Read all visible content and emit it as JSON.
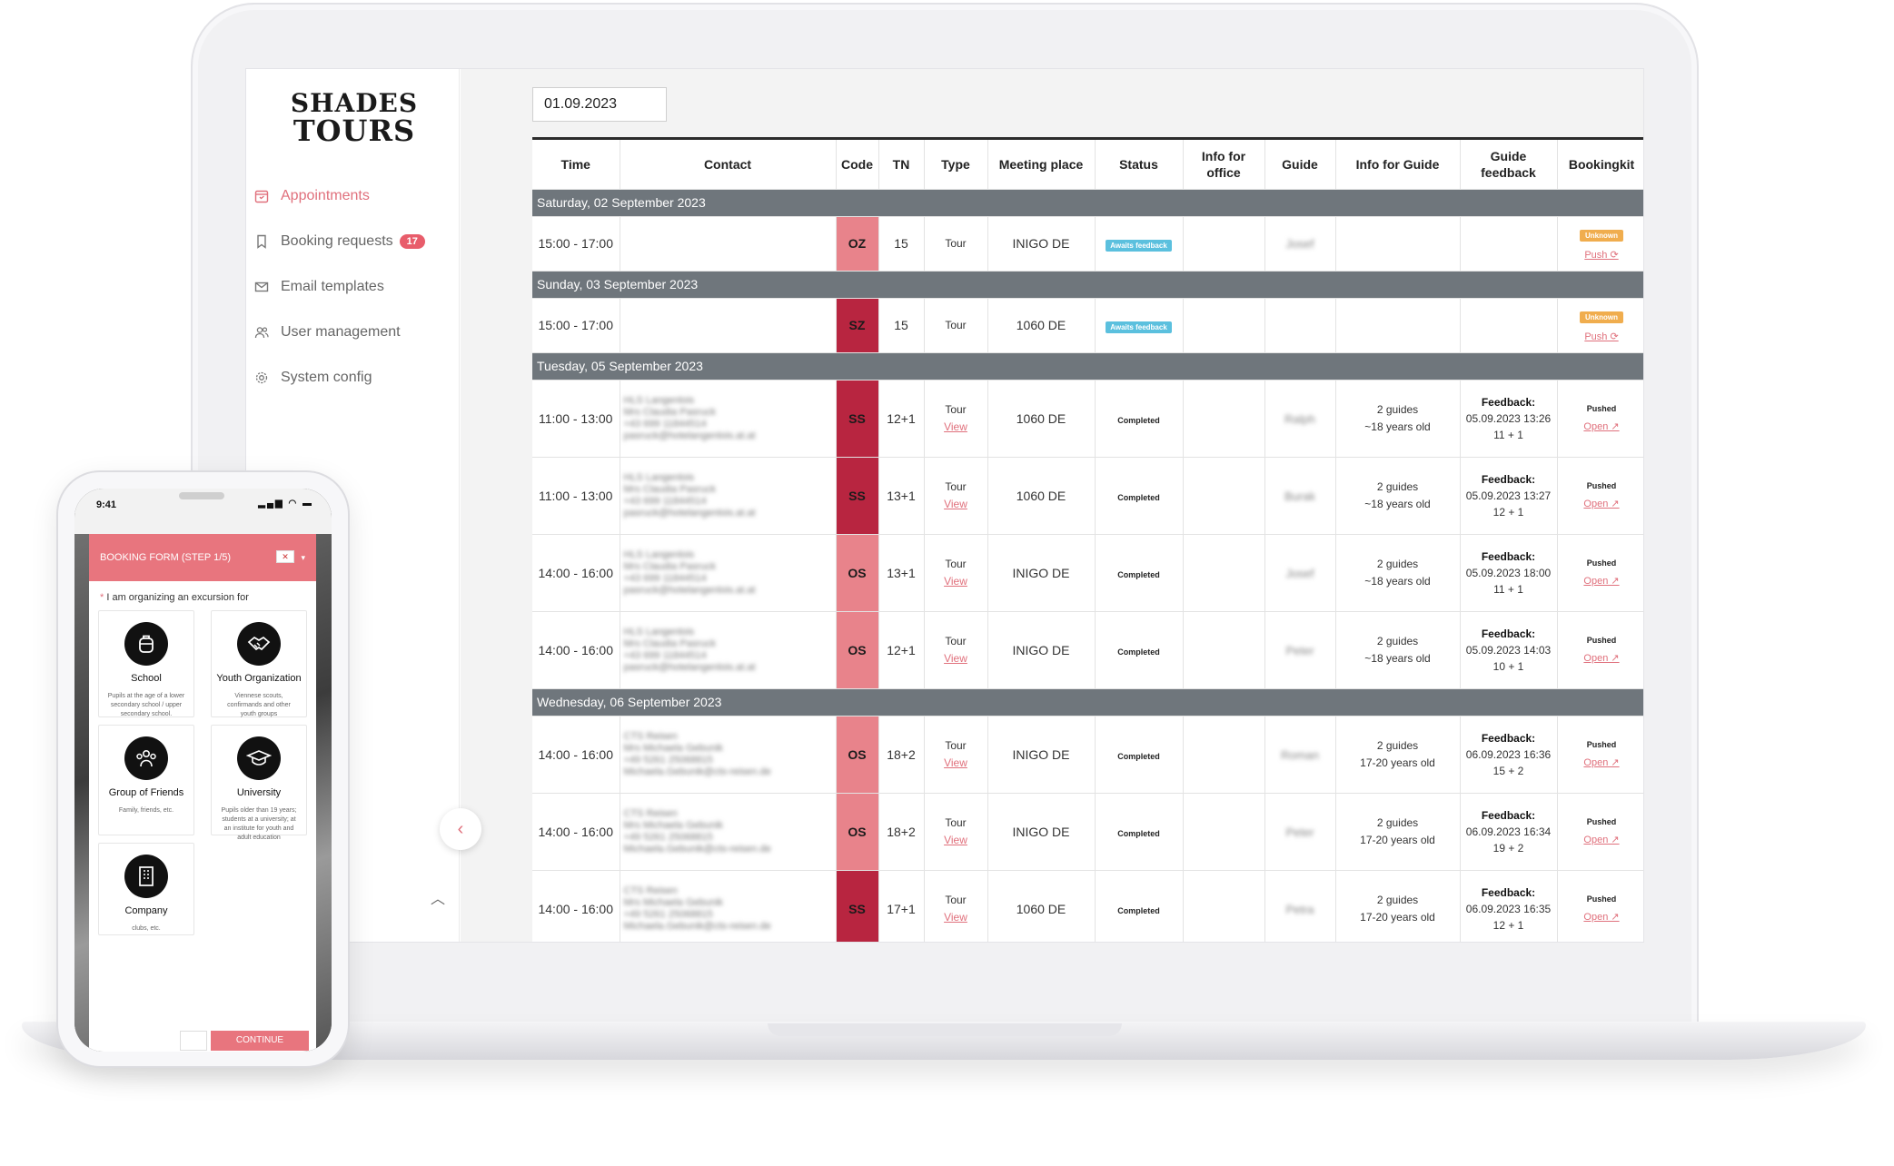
{
  "brand": {
    "line1": "SHADES",
    "line2": "TOURS"
  },
  "sidebar": {
    "items": [
      {
        "label": "Appointments",
        "icon": "calendar-icon",
        "active": true
      },
      {
        "label": "Booking requests",
        "icon": "bookmark-icon",
        "badge": "17"
      },
      {
        "label": "Email templates",
        "icon": "mail-icon"
      },
      {
        "label": "User management",
        "icon": "users-icon"
      },
      {
        "label": "System config",
        "icon": "gear-icon"
      }
    ]
  },
  "filter": {
    "date": "01.09.2023"
  },
  "table": {
    "headers": {
      "time": "Time",
      "contact": "Contact",
      "code": "Code",
      "tn": "TN",
      "type": "Type",
      "meeting": "Meeting place",
      "status": "Status",
      "office": "Info for office",
      "guide": "Guide",
      "guide_info": "Info for Guide",
      "feedback": "Guide feedback",
      "bookingkit": "Bookingkit"
    },
    "days": [
      {
        "label": "Saturday, 02 September 2023",
        "rows": [
          {
            "time": "15:00 - 17:00",
            "contact": [
              "",
              "",
              "",
              ""
            ],
            "code": "OZ",
            "code_color": "#e8838b",
            "tn": "15",
            "type": "Tour",
            "view": "",
            "meeting": "INIGO DE",
            "status": "Awaits feedback",
            "status_kind": "pending",
            "guide": "Josef",
            "guide_info": [
              "",
              ""
            ],
            "fb_title": "",
            "fb_date": "",
            "fb_count": "",
            "bk_status": "Unknown",
            "bk_kind": "unknown",
            "bk_link": "Push ⟳"
          }
        ]
      },
      {
        "label": "Sunday, 03 September 2023",
        "rows": [
          {
            "time": "15:00 - 17:00",
            "contact": [
              "",
              "",
              "",
              ""
            ],
            "code": "SZ",
            "code_color": "#b82540",
            "tn": "15",
            "type": "Tour",
            "view": "",
            "meeting": "1060 DE",
            "status": "Awaits feedback",
            "status_kind": "pending",
            "guide": "",
            "guide_info": [
              "",
              ""
            ],
            "fb_title": "",
            "fb_date": "",
            "fb_count": "",
            "bk_status": "Unknown",
            "bk_kind": "unknown",
            "bk_link": "Push ⟳"
          }
        ]
      },
      {
        "label": "Tuesday, 05 September 2023",
        "rows": [
          {
            "time": "11:00 - 13:00",
            "contact": [
              "HLS Langenlois",
              "Mrs Claudia Pasruck",
              "+43 699 11844514",
              "pasruck@hotelangenlois.at.at"
            ],
            "code": "SS",
            "code_color": "#b82540",
            "tn": "12+1",
            "type": "Tour",
            "view": "View",
            "meeting": "1060 DE",
            "status": "Completed",
            "status_kind": "done",
            "guide": "Ralph",
            "guide_info": [
              "2 guides",
              "~18 years old"
            ],
            "fb_title": "Feedback:",
            "fb_date": "05.09.2023 13:26",
            "fb_count": "11 + 1",
            "bk_status": "Pushed",
            "bk_kind": "pushed",
            "bk_link": "Open ↗"
          },
          {
            "time": "11:00 - 13:00",
            "contact": [
              "HLS Langenlois",
              "Mrs Claudia Pasruck",
              "+43 699 11844514",
              "pasruck@hotelangenlois.at.at"
            ],
            "code": "SS",
            "code_color": "#b82540",
            "tn": "13+1",
            "type": "Tour",
            "view": "View",
            "meeting": "1060 DE",
            "status": "Completed",
            "status_kind": "done",
            "guide": "Burak",
            "guide_info": [
              "2 guides",
              "~18 years old"
            ],
            "fb_title": "Feedback:",
            "fb_date": "05.09.2023 13:27",
            "fb_count": "12 + 1",
            "bk_status": "Pushed",
            "bk_kind": "pushed",
            "bk_link": "Open ↗"
          },
          {
            "time": "14:00 - 16:00",
            "contact": [
              "HLS Langenlois",
              "Mrs Claudia Pasruck",
              "+43 699 11844514",
              "pasruck@hotelangenlois.at.at"
            ],
            "code": "OS",
            "code_color": "#e8838b",
            "tn": "13+1",
            "type": "Tour",
            "view": "View",
            "meeting": "INIGO DE",
            "status": "Completed",
            "status_kind": "done",
            "guide": "Josef",
            "guide_info": [
              "2 guides",
              "~18 years old"
            ],
            "fb_title": "Feedback:",
            "fb_date": "05.09.2023 18:00",
            "fb_count": "11 + 1",
            "bk_status": "Pushed",
            "bk_kind": "pushed",
            "bk_link": "Open ↗"
          },
          {
            "time": "14:00 - 16:00",
            "contact": [
              "HLS Langenlois",
              "Mrs Claudia Pasruck",
              "+43 699 11844514",
              "pasruck@hotelangenlois.at.at"
            ],
            "code": "OS",
            "code_color": "#e8838b",
            "tn": "12+1",
            "type": "Tour",
            "view": "View",
            "meeting": "INIGO DE",
            "status": "Completed",
            "status_kind": "done",
            "guide": "Peter",
            "guide_info": [
              "2 guides",
              "~18 years old"
            ],
            "fb_title": "Feedback:",
            "fb_date": "05.09.2023 14:03",
            "fb_count": "10 + 1",
            "bk_status": "Pushed",
            "bk_kind": "pushed",
            "bk_link": "Open ↗"
          }
        ]
      },
      {
        "label": "Wednesday, 06 September 2023",
        "rows": [
          {
            "time": "14:00 - 16:00",
            "contact": [
              "CTS Reisen",
              "Mrs Michaela Gebunik",
              "+49 5261 25068815",
              "Michaela.Gebunik@cts-reisen.de"
            ],
            "code": "OS",
            "code_color": "#e8838b",
            "tn": "18+2",
            "type": "Tour",
            "view": "View",
            "meeting": "INIGO DE",
            "status": "Completed",
            "status_kind": "done",
            "guide": "Roman",
            "guide_info": [
              "2 guides",
              "17-20 years old"
            ],
            "fb_title": "Feedback:",
            "fb_date": "06.09.2023 16:36",
            "fb_count": "15 + 2",
            "bk_status": "Pushed",
            "bk_kind": "pushed",
            "bk_link": "Open ↗"
          },
          {
            "time": "14:00 - 16:00",
            "contact": [
              "CTS Reisen",
              "Mrs Michaela Gebunik",
              "+49 5261 25068815",
              "Michaela.Gebunik@cts-reisen.de"
            ],
            "code": "OS",
            "code_color": "#e8838b",
            "tn": "18+2",
            "type": "Tour",
            "view": "View",
            "meeting": "INIGO DE",
            "status": "Completed",
            "status_kind": "done",
            "guide": "Peter",
            "guide_info": [
              "2 guides",
              "17-20 years old"
            ],
            "fb_title": "Feedback:",
            "fb_date": "06.09.2023 16:34",
            "fb_count": "19 + 2",
            "bk_status": "Pushed",
            "bk_kind": "pushed",
            "bk_link": "Open ↗"
          },
          {
            "time": "14:00 - 16:00",
            "contact": [
              "CTS Reisen",
              "Mrs Michaela Gebunik",
              "+49 5261 25068815",
              "Michaela.Gebunik@cts-reisen.de"
            ],
            "code": "SS",
            "code_color": "#b82540",
            "tn": "17+1",
            "type": "Tour",
            "view": "View",
            "meeting": "1060 DE",
            "status": "Completed",
            "status_kind": "done",
            "guide": "Petra",
            "guide_info": [
              "2 guides",
              "17-20 years old"
            ],
            "fb_title": "Feedback:",
            "fb_date": "06.09.2023 16:35",
            "fb_count": "12 + 1",
            "bk_status": "Pushed",
            "bk_kind": "pushed",
            "bk_link": "Open ↗"
          }
        ]
      }
    ]
  },
  "phone": {
    "time": "9:41",
    "form_title": "BOOKING FORM (STEP 1/5)",
    "question_mark": "*",
    "question": "I am organizing an excursion for",
    "continue": "CONTINUE",
    "options": [
      {
        "title": "School",
        "desc": "Pupils at the age of a lower secondary school / upper secondary school.",
        "icon": "backpack-icon"
      },
      {
        "title": "Youth Organization",
        "desc": "Viennese scouts, confirmands and other youth groups",
        "icon": "handshake-icon"
      },
      {
        "title": "Group of Friends",
        "desc": "Family, friends, etc.",
        "icon": "group-icon"
      },
      {
        "title": "University",
        "desc": "Pupils older than 19 years; students at a university; at an institute for youth and adult education",
        "icon": "graduation-cap-icon"
      },
      {
        "title": "Company",
        "desc": "clubs, etc.",
        "icon": "building-icon"
      }
    ]
  }
}
